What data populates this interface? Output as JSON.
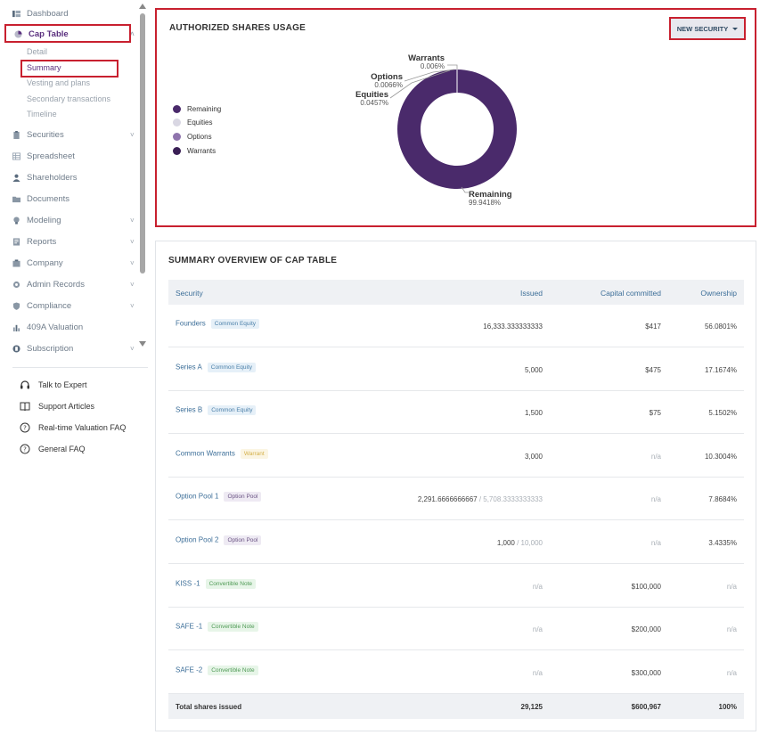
{
  "sidebar": {
    "items": [
      {
        "label": "Dashboard",
        "icon": "dashboard-icon",
        "chevron": false
      },
      {
        "label": "Cap Table",
        "icon": "pie-chart-icon",
        "chevron": true,
        "active": true
      },
      {
        "label": "Securities",
        "icon": "clipboard-icon",
        "chevron": true
      },
      {
        "label": "Spreadsheet",
        "icon": "spreadsheet-icon",
        "chevron": false
      },
      {
        "label": "Shareholders",
        "icon": "user-icon",
        "chevron": false
      },
      {
        "label": "Documents",
        "icon": "folder-icon",
        "chevron": false
      },
      {
        "label": "Modeling",
        "icon": "bulb-icon",
        "chevron": true
      },
      {
        "label": "Reports",
        "icon": "report-icon",
        "chevron": true
      },
      {
        "label": "Company",
        "icon": "company-icon",
        "chevron": true
      },
      {
        "label": "Admin Records",
        "icon": "admin-icon",
        "chevron": true
      },
      {
        "label": "Compliance",
        "icon": "shield-icon",
        "chevron": true
      },
      {
        "label": "409A Valuation",
        "icon": "bar-chart-icon",
        "chevron": false
      },
      {
        "label": "Subscription",
        "icon": "subscription-icon",
        "chevron": true
      }
    ],
    "cap_table_sub": [
      "Detail",
      "Summary",
      "Vesting and plans",
      "Secondary transactions",
      "Timeline"
    ],
    "help": [
      {
        "label": "Talk to Expert",
        "icon": "headset-icon"
      },
      {
        "label": "Support Articles",
        "icon": "book-icon"
      },
      {
        "label": "Real-time Valuation FAQ",
        "icon": "question-circle-icon"
      },
      {
        "label": "General FAQ",
        "icon": "question-circle-icon"
      }
    ]
  },
  "usage": {
    "title": "AUTHORIZED SHARES USAGE",
    "new_security_label": "NEW SECURITY",
    "legend": [
      "Remaining",
      "Equities",
      "Options",
      "Warrants"
    ],
    "colors": {
      "remaining": "#4a2a6b",
      "equities": "#d9d7e3",
      "options": "#8f74ad",
      "warrants": "#3a1f55"
    }
  },
  "chart_data": {
    "type": "pie",
    "donut": true,
    "labels": [
      "Remaining",
      "Equities",
      "Options",
      "Warrants"
    ],
    "values": [
      99.9418,
      0.0457,
      0.0066,
      0.006
    ],
    "value_labels": [
      "99.9418%",
      "0.0457%",
      "0.0066%",
      "0.006%"
    ],
    "title": "AUTHORIZED SHARES USAGE",
    "legend_position": "left"
  },
  "summary": {
    "title": "SUMMARY OVERVIEW OF CAP TABLE",
    "headers": {
      "security": "Security",
      "issued": "Issued",
      "capital": "Capital committed",
      "ownership": "Ownership"
    },
    "rows": [
      {
        "name": "Founders",
        "tag": "Common Equity",
        "tag_type": "equity",
        "issued": "16,333.333333333",
        "issued_of": "",
        "capital": "$417",
        "ownership": "56.0801%"
      },
      {
        "name": "Series A",
        "tag": "Common Equity",
        "tag_type": "equity",
        "issued": "5,000",
        "issued_of": "",
        "capital": "$475",
        "ownership": "17.1674%"
      },
      {
        "name": "Series B",
        "tag": "Common Equity",
        "tag_type": "equity",
        "issued": "1,500",
        "issued_of": "",
        "capital": "$75",
        "ownership": "5.1502%"
      },
      {
        "name": "Common Warrants",
        "tag": "Warrant",
        "tag_type": "warrant",
        "issued": "3,000",
        "issued_of": "",
        "capital": "n/a",
        "ownership": "10.3004%"
      },
      {
        "name": "Option Pool 1",
        "tag": "Option Pool",
        "tag_type": "option",
        "issued": "2,291.6666666667",
        "issued_of": " / 5,708.3333333333",
        "capital": "n/a",
        "ownership": "7.8684%"
      },
      {
        "name": "Option Pool 2",
        "tag": "Option Pool",
        "tag_type": "option",
        "issued": "1,000",
        "issued_of": " / 10,000",
        "capital": "n/a",
        "ownership": "3.4335%"
      },
      {
        "name": "KISS -1",
        "tag": "Convertible Note",
        "tag_type": "note",
        "issued": "n/a",
        "issued_of": "",
        "capital": "$100,000",
        "ownership": "n/a"
      },
      {
        "name": "SAFE -1",
        "tag": "Convertible Note",
        "tag_type": "note",
        "issued": "n/a",
        "issued_of": "",
        "capital": "$200,000",
        "ownership": "n/a"
      },
      {
        "name": "SAFE -2",
        "tag": "Convertible Note",
        "tag_type": "note",
        "issued": "n/a",
        "issued_of": "",
        "capital": "$300,000",
        "ownership": "n/a"
      }
    ],
    "total": {
      "label": "Total shares issued",
      "issued": "29,125",
      "capital": "$600,967",
      "ownership": "100%"
    }
  }
}
